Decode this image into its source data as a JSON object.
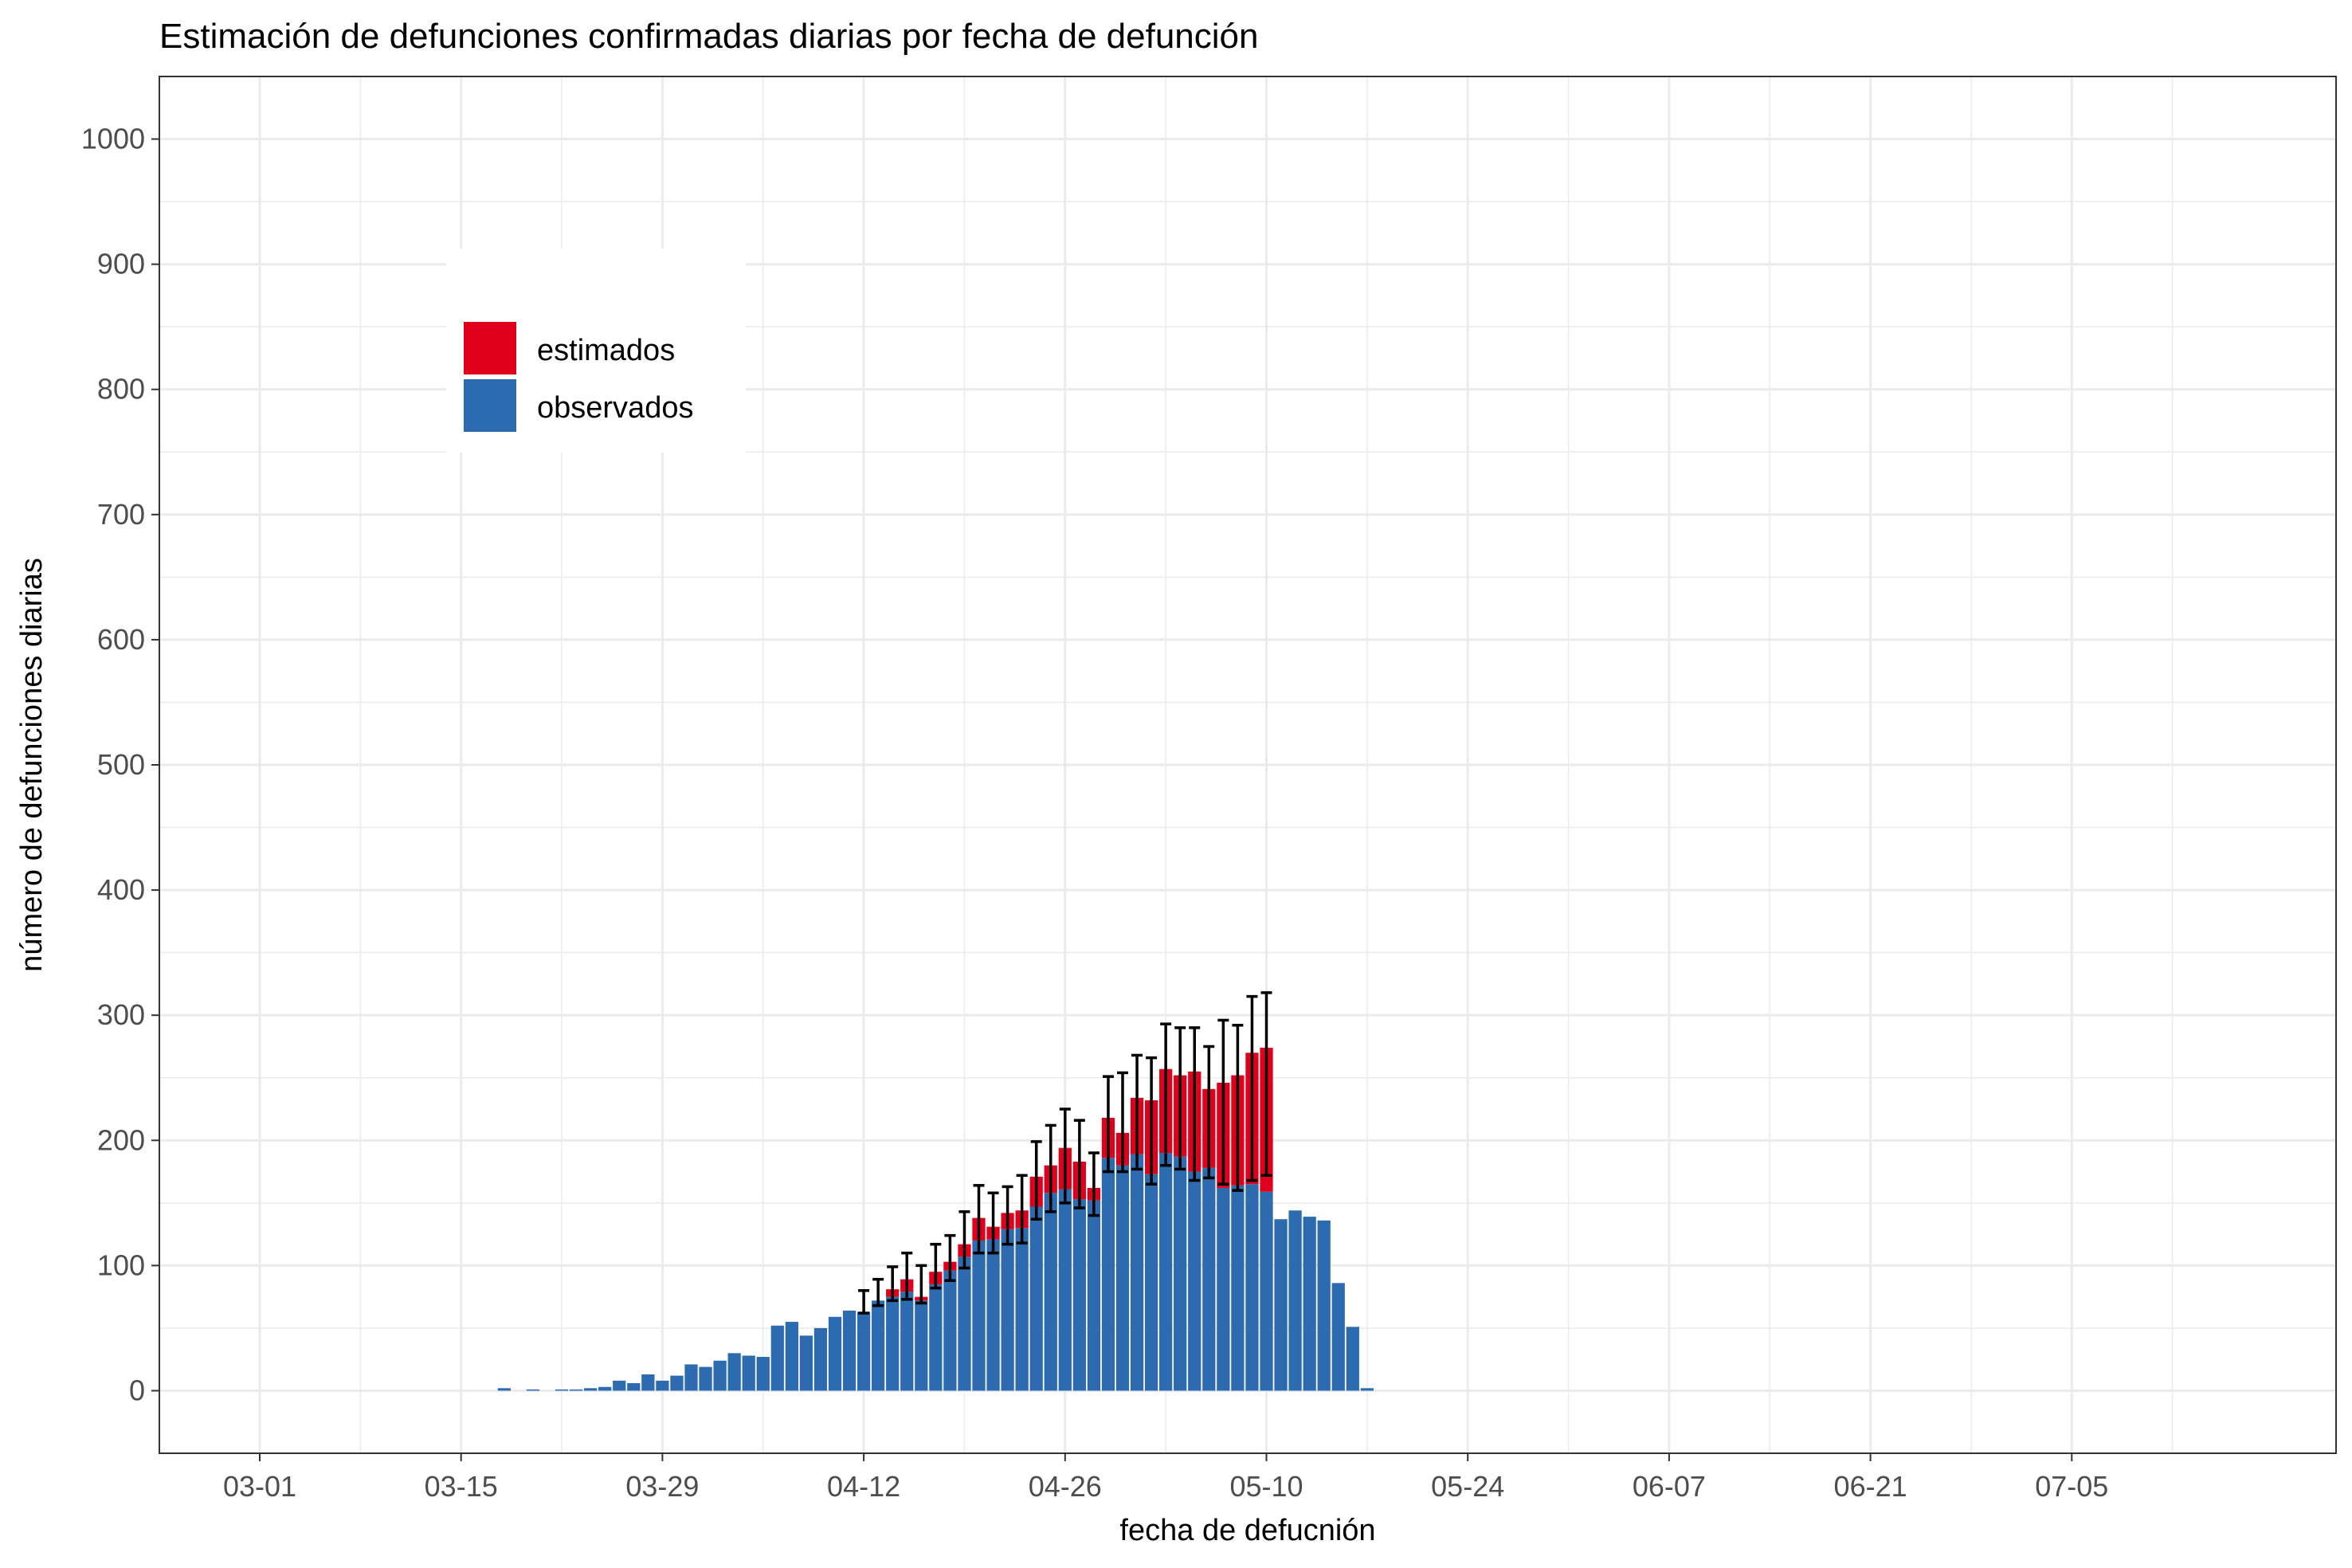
{
  "chart_data": {
    "type": "bar",
    "stacked": true,
    "title": "Estimación de defunciones confirmadas diarias por fecha de defunción",
    "xlabel": "fecha de defucnión",
    "ylabel": "número de defunciones diarias",
    "x_start": "03-01",
    "x_end": "07-18",
    "x_ticks": [
      "03-01",
      "03-15",
      "03-29",
      "04-12",
      "04-26",
      "05-10",
      "05-24",
      "06-07",
      "06-21",
      "07-05"
    ],
    "y_ticks": [
      0,
      100,
      200,
      300,
      400,
      500,
      600,
      700,
      800,
      900,
      1000
    ],
    "ylim": [
      -50,
      1050
    ],
    "grid": true,
    "legend_position": "top-left (inside)",
    "series": [
      {
        "name": "estimados",
        "color": "#e0001b"
      },
      {
        "name": "observados",
        "color": "#2c6bb0"
      }
    ],
    "legend": {
      "items": [
        {
          "label": "estimados",
          "color": "#e0001b"
        },
        {
          "label": "observados",
          "color": "#2c6bb0"
        }
      ]
    },
    "colors": {
      "estimados": "#e0001b",
      "observados": "#2c6bb0",
      "error_bar": "#000000",
      "grid": "#ebebeb",
      "panel_border": "#333333"
    },
    "dates": [
      "03-17",
      "03-18",
      "03-19",
      "03-20",
      "03-21",
      "03-22",
      "03-23",
      "03-24",
      "03-25",
      "03-26",
      "03-27",
      "03-28",
      "03-29",
      "03-30",
      "03-31",
      "04-01",
      "04-02",
      "04-03",
      "04-04",
      "04-05",
      "04-06",
      "04-07",
      "04-08",
      "04-09",
      "04-10",
      "04-11",
      "04-12",
      "04-13",
      "04-14",
      "04-15",
      "04-16",
      "04-17",
      "04-18",
      "04-19",
      "04-20",
      "04-21",
      "04-22",
      "04-23",
      "04-24",
      "04-25",
      "04-26",
      "04-27",
      "04-28",
      "04-29",
      "04-30",
      "05-01",
      "05-02",
      "05-03",
      "05-04",
      "05-05",
      "05-06",
      "05-07",
      "05-08",
      "05-09",
      "05-10",
      "05-11",
      "05-12",
      "05-13",
      "05-14",
      "05-15",
      "05-16",
      "05-17",
      "05-18",
      "05-19",
      "05-20"
    ],
    "observados": [
      0,
      2,
      0,
      1,
      0,
      1,
      1,
      2,
      3,
      8,
      6,
      13,
      8,
      12,
      21,
      19,
      24,
      30,
      28,
      27,
      52,
      55,
      44,
      50,
      59,
      64,
      63,
      72,
      75,
      79,
      72,
      85,
      96,
      107,
      120,
      121,
      129,
      130,
      147,
      158,
      161,
      153,
      152,
      186,
      180,
      189,
      173,
      190,
      187,
      175,
      178,
      162,
      164,
      165,
      159,
      137,
      144,
      139,
      136,
      86,
      51,
      2,
      0,
      0,
      0
    ],
    "estimados": [
      0,
      0,
      0,
      0,
      0,
      0,
      0,
      0,
      0,
      0,
      0,
      0,
      0,
      0,
      0,
      0,
      0,
      0,
      0,
      0,
      0,
      0,
      0,
      0,
      0,
      0,
      0,
      0,
      6,
      10,
      3,
      10,
      7,
      10,
      18,
      10,
      13,
      14,
      24,
      22,
      33,
      30,
      10,
      32,
      26,
      45,
      59,
      67,
      65,
      80,
      63,
      84,
      88,
      105,
      115,
      0,
      0,
      0,
      0,
      0,
      0,
      0,
      0,
      0,
      0
    ],
    "error_low": [
      null,
      null,
      null,
      null,
      null,
      null,
      null,
      null,
      null,
      null,
      null,
      null,
      null,
      null,
      null,
      null,
      null,
      null,
      null,
      null,
      null,
      null,
      null,
      null,
      null,
      null,
      62,
      68,
      72,
      73,
      70,
      82,
      88,
      98,
      110,
      110,
      117,
      118,
      137,
      143,
      150,
      146,
      140,
      175,
      175,
      177,
      165,
      180,
      177,
      168,
      170,
      165,
      160,
      168,
      172,
      null,
      null,
      null,
      null,
      null,
      null,
      null,
      null,
      null,
      null
    ],
    "error_high": [
      null,
      null,
      null,
      null,
      null,
      null,
      null,
      null,
      null,
      null,
      null,
      null,
      null,
      null,
      null,
      null,
      null,
      null,
      null,
      null,
      null,
      null,
      null,
      null,
      null,
      null,
      80,
      89,
      99,
      110,
      100,
      117,
      124,
      143,
      164,
      158,
      163,
      172,
      199,
      212,
      225,
      216,
      190,
      251,
      254,
      268,
      266,
      293,
      290,
      290,
      275,
      296,
      292,
      315,
      318,
      null,
      null,
      null,
      null,
      null,
      null,
      null,
      null,
      null,
      null
    ]
  }
}
